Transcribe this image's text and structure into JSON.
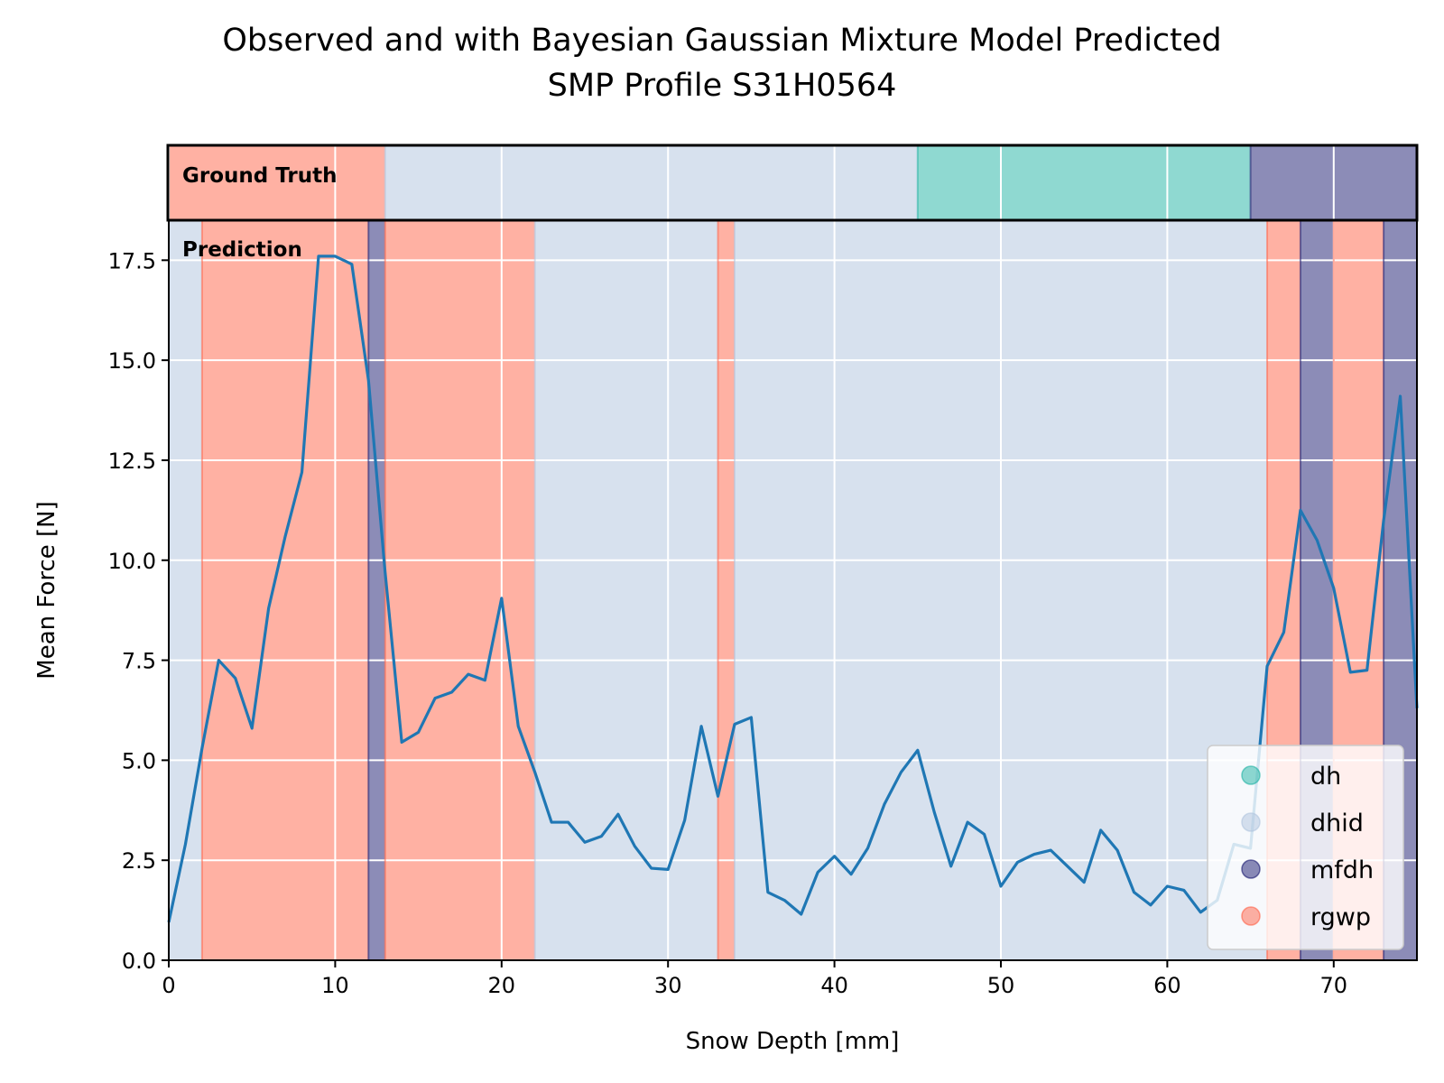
{
  "chart_data": {
    "type": "line",
    "title": "Observed and with Bayesian Gaussian Mixture Model Predicted",
    "subtitle": "SMP Profile S31H0564",
    "xlabel": "Snow Depth [mm]",
    "ylabel": "Mean Force [N]",
    "xlim": [
      0,
      75
    ],
    "ylim": [
      0,
      18.5
    ],
    "x_ticks": [
      0,
      10,
      20,
      30,
      40,
      50,
      60,
      70
    ],
    "y_ticks": [
      0,
      2.5,
      5,
      7.5,
      10,
      12.5,
      15,
      17.5
    ],
    "x_tick_labels": [
      "0",
      "10",
      "20",
      "30",
      "40",
      "50",
      "60",
      "70"
    ],
    "y_tick_labels": [
      "0.0",
      "2.5",
      "5.0",
      "7.5",
      "10.0",
      "12.5",
      "15.0",
      "17.5"
    ],
    "grid": true,
    "legend_position": "lower-right",
    "ground_truth_label": "Ground Truth",
    "prediction_label": "Prediction",
    "classes": [
      {
        "name": "dh",
        "color": "#1fb3a3"
      },
      {
        "name": "dhid",
        "color": "#b0c4de"
      },
      {
        "name": "mfdh",
        "color": "#191970"
      },
      {
        "name": "rgwp",
        "color": "#ff6347"
      }
    ],
    "ground_truth_segments": [
      {
        "start": 0,
        "end": 13,
        "class": "rgwp"
      },
      {
        "start": 13,
        "end": 45,
        "class": "dhid"
      },
      {
        "start": 45,
        "end": 65,
        "class": "dh"
      },
      {
        "start": 65,
        "end": 75,
        "class": "mfdh"
      }
    ],
    "prediction_segments": [
      {
        "start": 0,
        "end": 2,
        "class": "dhid"
      },
      {
        "start": 2,
        "end": 12,
        "class": "rgwp"
      },
      {
        "start": 12,
        "end": 13,
        "class": "mfdh"
      },
      {
        "start": 13,
        "end": 22,
        "class": "rgwp"
      },
      {
        "start": 22,
        "end": 33,
        "class": "dhid"
      },
      {
        "start": 33,
        "end": 34,
        "class": "rgwp"
      },
      {
        "start": 34,
        "end": 66,
        "class": "dhid"
      },
      {
        "start": 66,
        "end": 68,
        "class": "rgwp"
      },
      {
        "start": 68,
        "end": 70,
        "class": "mfdh"
      },
      {
        "start": 70,
        "end": 73,
        "class": "rgwp"
      },
      {
        "start": 73,
        "end": 75,
        "class": "mfdh"
      }
    ],
    "series": [
      {
        "color": "#1f77b4",
        "x": [
          0,
          1,
          2,
          3,
          4,
          5,
          6,
          7,
          8,
          9,
          10,
          11,
          12,
          13,
          14,
          15,
          16,
          17,
          18,
          19,
          20,
          21,
          22,
          23,
          24,
          25,
          26,
          27,
          28,
          29,
          30,
          31,
          32,
          33,
          34,
          35,
          36,
          37,
          38,
          39,
          40,
          41,
          42,
          43,
          44,
          45,
          46,
          47,
          48,
          49,
          50,
          51,
          52,
          53,
          54,
          55,
          56,
          57,
          58,
          59,
          60,
          61,
          62,
          63,
          64,
          65,
          66,
          67,
          68,
          69,
          70,
          71,
          72,
          73,
          74,
          75
        ],
        "y": [
          0.95,
          2.9,
          5.3,
          7.5,
          7.05,
          5.8,
          8.8,
          10.6,
          12.2,
          17.6,
          17.6,
          17.4,
          14.5,
          9.7,
          5.45,
          5.7,
          6.55,
          6.7,
          7.15,
          7.0,
          9.05,
          5.85,
          4.7,
          3.45,
          3.45,
          2.95,
          3.1,
          3.65,
          2.85,
          2.3,
          2.27,
          3.5,
          5.85,
          4.1,
          5.9,
          6.07,
          1.7,
          1.5,
          1.15,
          2.2,
          2.6,
          2.15,
          2.8,
          3.9,
          4.7,
          5.25,
          3.7,
          2.35,
          3.45,
          3.15,
          1.85,
          2.45,
          2.65,
          2.75,
          2.35,
          1.95,
          3.25,
          2.75,
          1.7,
          1.38,
          1.85,
          1.75,
          1.2,
          1.5,
          2.9,
          2.8,
          7.35,
          8.2,
          11.25,
          10.5,
          9.3,
          7.2,
          7.25,
          11.0,
          14.1,
          6.3
        ]
      }
    ]
  }
}
